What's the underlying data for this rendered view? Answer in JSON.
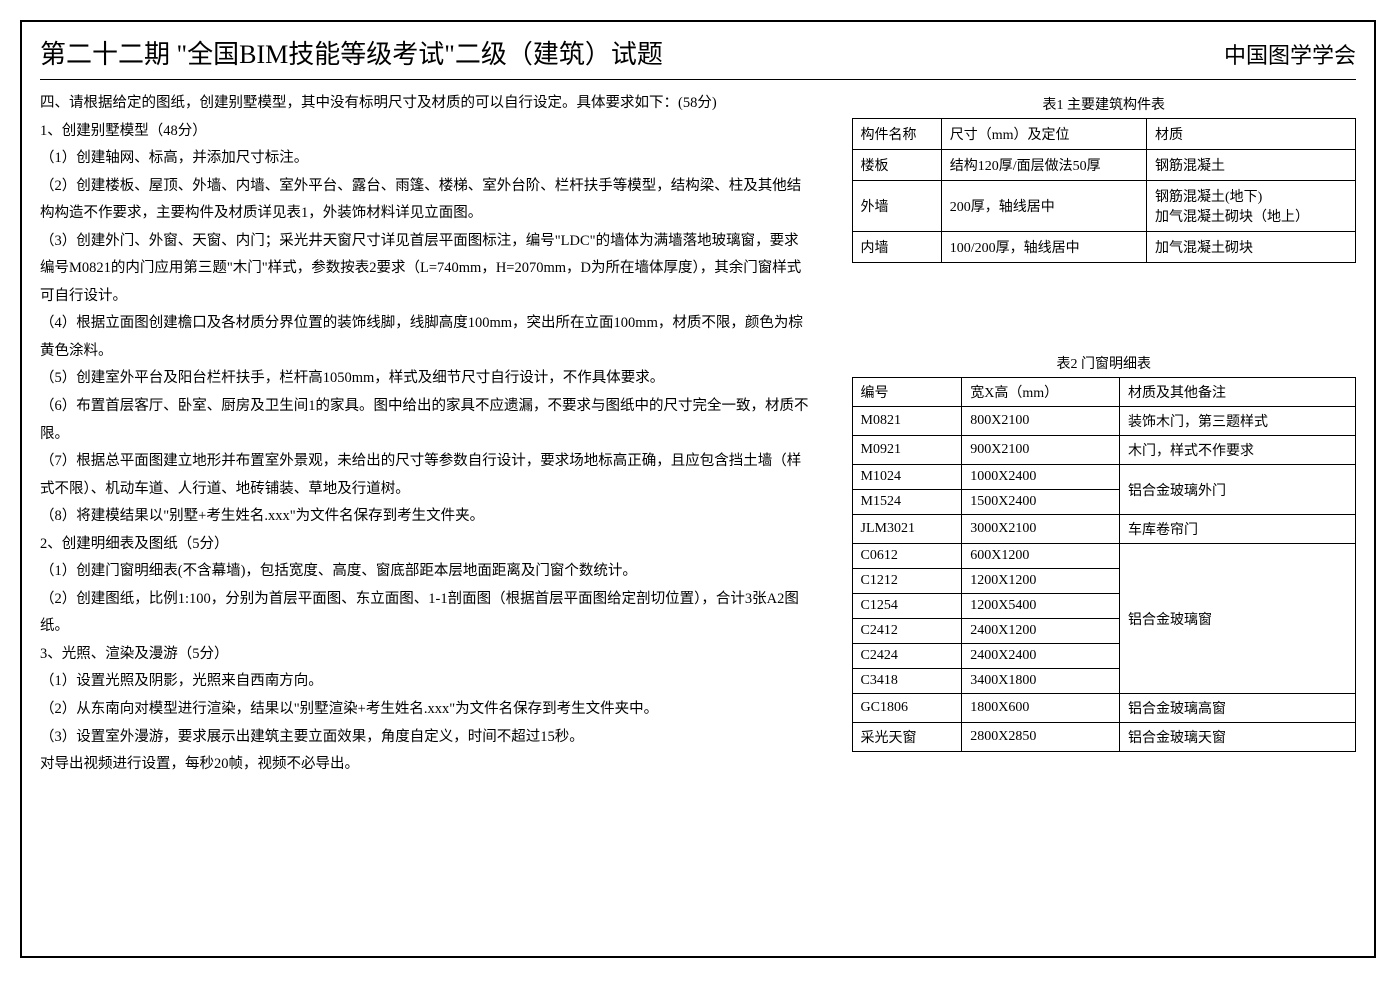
{
  "header": {
    "title": "第二十二期 \"全国BIM技能等级考试\"二级（建筑）试题",
    "org": "中国图学学会"
  },
  "question": {
    "intro": "四、请根据给定的图纸，创建别墅模型，其中没有标明尺寸及材质的可以自行设定。具体要求如下：(58分)",
    "section1_title": "1、创建别墅模型（48分）",
    "s1_items": [
      "（1）创建轴网、标高，并添加尺寸标注。",
      "（2）创建楼板、屋顶、外墙、内墙、室外平台、露台、雨篷、楼梯、室外台阶、栏杆扶手等模型，结构梁、柱及其他结构构造不作要求，主要构件及材质详见表1，外装饰材料详见立面图。",
      "（3）创建外门、外窗、天窗、内门；采光井天窗尺寸详见首层平面图标注，编号\"LDC\"的墙体为满墙落地玻璃窗，要求编号M0821的内门应用第三题\"木门\"样式，参数按表2要求（L=740mm，H=2070mm，D为所在墙体厚度），其余门窗样式可自行设计。",
      "（4）根据立面图创建檐口及各材质分界位置的装饰线脚，线脚高度100mm，突出所在立面100mm，材质不限，颜色为棕黄色涂料。",
      "（5）创建室外平台及阳台栏杆扶手，栏杆高1050mm，样式及细节尺寸自行设计，不作具体要求。",
      "（6）布置首层客厅、卧室、厨房及卫生间1的家具。图中给出的家具不应遗漏，不要求与图纸中的尺寸完全一致，材质不限。",
      "（7）根据总平面图建立地形并布置室外景观，未给出的尺寸等参数自行设计，要求场地标高正确，且应包含挡土墙（样式不限）、机动车道、人行道、地砖铺装、草地及行道树。",
      "（8）将建模结果以\"别墅+考生姓名.xxx\"为文件名保存到考生文件夹。"
    ],
    "section2_title": "2、创建明细表及图纸（5分）",
    "s2_items": [
      "（1）创建门窗明细表(不含幕墙)，包括宽度、高度、窗底部距本层地面距离及门窗个数统计。",
      "（2）创建图纸，比例1:100，分别为首层平面图、东立面图、1-1剖面图（根据首层平面图给定剖切位置），合计3张A2图纸。"
    ],
    "section3_title": "3、光照、渲染及漫游（5分）",
    "s3_items": [
      "（1）设置光照及阴影，光照来自西南方向。",
      "（2）从东南向对模型进行渲染，结果以\"别墅渲染+考生姓名.xxx\"为文件名保存到考生文件夹中。",
      "（3）设置室外漫游，要求展示出建筑主要立面效果，角度自定义，时间不超过15秒。",
      "对导出视频进行设置，每秒20帧，视频不必导出。"
    ]
  },
  "table1": {
    "caption": "表1 主要建筑构件表",
    "headers": [
      "构件名称",
      "尺寸（mm）及定位",
      "材质"
    ],
    "rows": [
      [
        "楼板",
        "结构120厚/面层做法50厚",
        "钢筋混凝土"
      ],
      [
        "外墙",
        "200厚，轴线居中",
        "钢筋混凝土(地下)\n加气混凝土砌块（地上）"
      ],
      [
        "内墙",
        "100/200厚，轴线居中",
        "加气混凝土砌块"
      ]
    ]
  },
  "table2": {
    "caption": "表2 门窗明细表",
    "headers": [
      "编号",
      "宽X高（mm）",
      "材质及其他备注"
    ],
    "rows": [
      {
        "code": "M0821",
        "size": "800X2100",
        "note": "装饰木门，第三题样式",
        "rowspan": 1
      },
      {
        "code": "M0921",
        "size": "900X2100",
        "note": "木门，样式不作要求",
        "rowspan": 1
      },
      {
        "code": "M1024",
        "size": "1000X2400",
        "note": "铝合金玻璃外门",
        "rowspan": 2,
        "show_note": true
      },
      {
        "code": "M1524",
        "size": "1500X2400",
        "show_note": false
      },
      {
        "code": "JLM3021",
        "size": "3000X2100",
        "note": "车库卷帘门",
        "rowspan": 1,
        "show_note": true
      },
      {
        "code": "C0612",
        "size": "600X1200",
        "note": "铝合金玻璃窗",
        "rowspan": 6,
        "show_note": true
      },
      {
        "code": "C1212",
        "size": "1200X1200",
        "show_note": false
      },
      {
        "code": "C1254",
        "size": "1200X5400",
        "show_note": false
      },
      {
        "code": "C2412",
        "size": "2400X1200",
        "show_note": false
      },
      {
        "code": "C2424",
        "size": "2400X2400",
        "show_note": false
      },
      {
        "code": "C3418",
        "size": "3400X1800",
        "show_note": false
      },
      {
        "code": "GC1806",
        "size": "1800X600",
        "note": "铝合金玻璃高窗",
        "rowspan": 1,
        "show_note": true
      },
      {
        "code": "采光天窗",
        "size": "2800X2850",
        "note": "铝合金玻璃天窗",
        "rowspan": 1,
        "show_note": true
      }
    ]
  }
}
